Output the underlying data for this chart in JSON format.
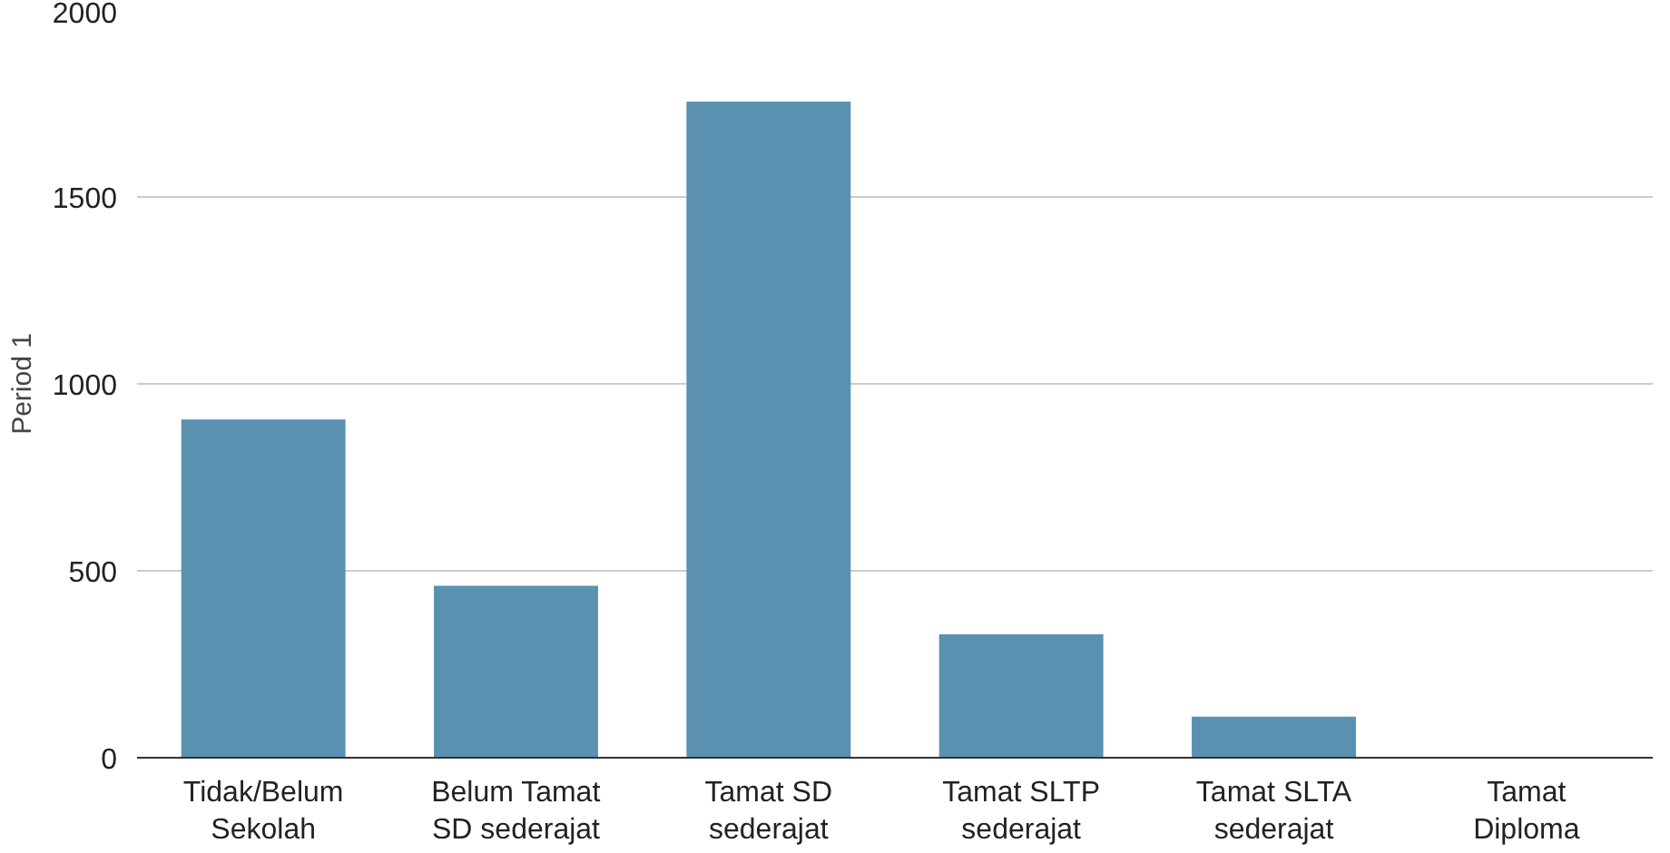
{
  "chart_data": {
    "type": "bar",
    "ylabel": "Period 1",
    "categories": [
      "Tidak/Belum Sekolah",
      "Belum Tamat SD sederajat",
      "Tamat SD sederajat",
      "Tamat SLTP sederajat",
      "Tamat SLTA sederajat",
      "Tamat Diploma"
    ],
    "values": [
      905,
      460,
      1755,
      330,
      110,
      0
    ],
    "color": "#5a91b0",
    "ylim": [
      0,
      2000
    ],
    "yticks": [
      0,
      500,
      1000,
      1500,
      2000
    ],
    "grid": "y"
  }
}
